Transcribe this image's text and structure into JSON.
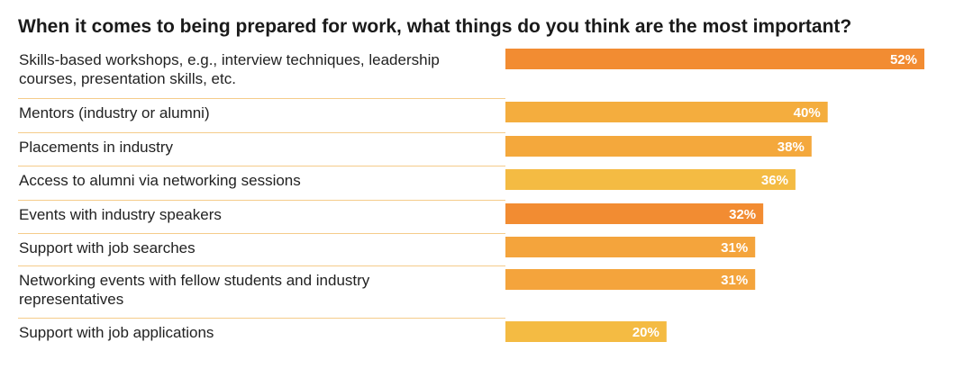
{
  "chart_data": {
    "type": "bar",
    "orientation": "horizontal",
    "title": "When it comes to being prepared for work, what things do you think are the most important?",
    "value_suffix": "%",
    "xlim": [
      0,
      52
    ],
    "grid": false,
    "legend": "none",
    "categories": [
      [
        "Skills-based workshops, e.g., interview techniques, leadership",
        "courses, presentation skills, etc."
      ],
      [
        "Mentors (industry or alumni)"
      ],
      [
        "Placements in industry"
      ],
      [
        "Access to alumni via networking sessions"
      ],
      [
        "Events with industry speakers"
      ],
      [
        "Support with job searches"
      ],
      [
        "Networking events with fellow students and industry",
        "representatives"
      ],
      [
        "Support with job applications"
      ]
    ],
    "values": [
      52,
      40,
      38,
      36,
      32,
      31,
      31,
      20
    ],
    "bar_colors": [
      "#f28c32",
      "#f4ad3e",
      "#f4a83c",
      "#f4bb43",
      "#f28c32",
      "#f4a43c",
      "#f4a43c",
      "#f4bb43"
    ],
    "divider_color": "#f5cc8a"
  }
}
